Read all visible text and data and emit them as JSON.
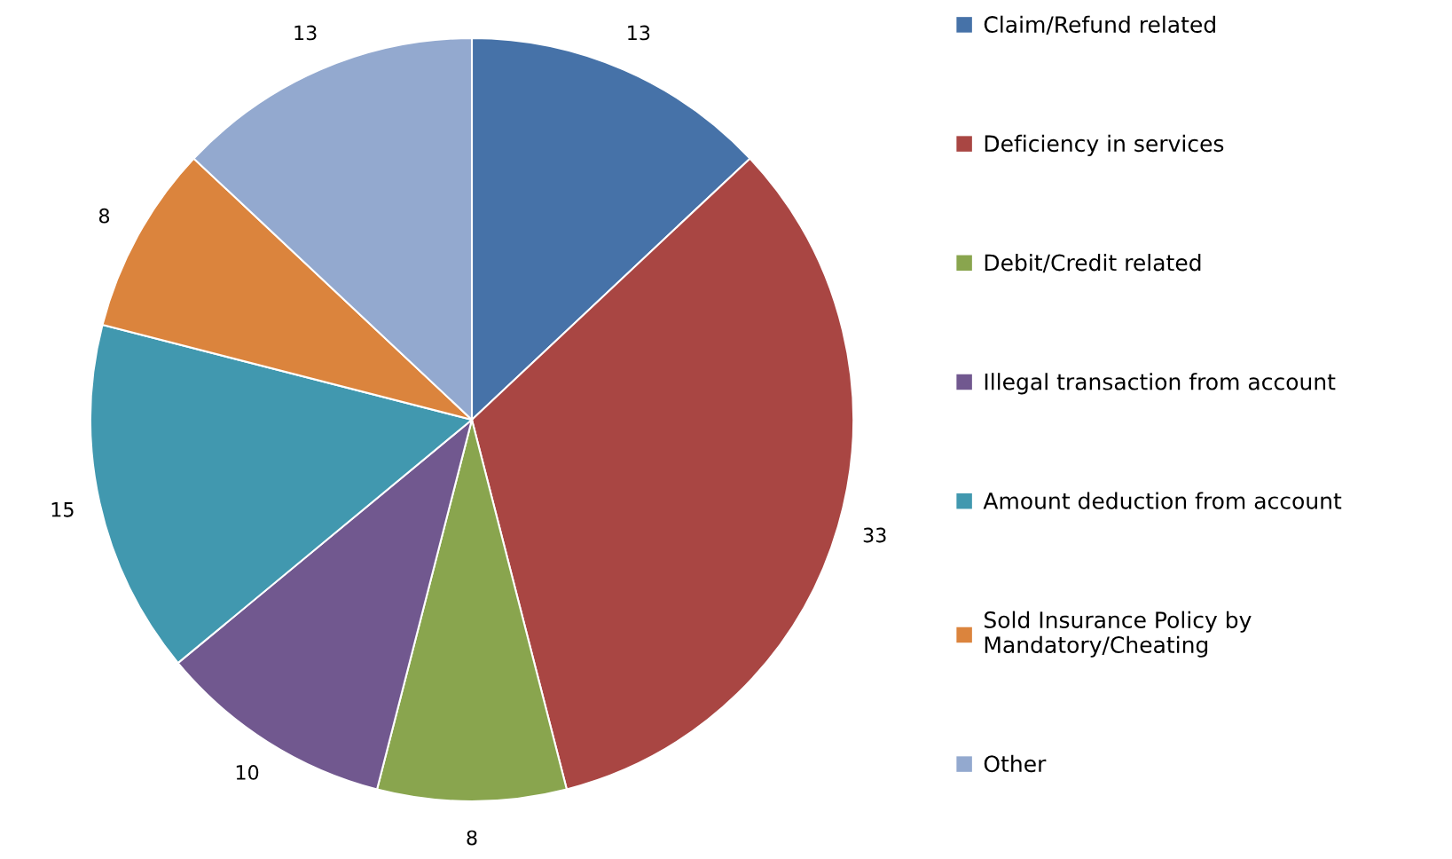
{
  "chart_data": {
    "type": "pie",
    "categories": [
      "Claim/Refund related",
      "Deficiency in services",
      "Debit/Credit related",
      "Illegal transaction from account",
      "Amount deduction from account",
      "Sold Insurance Policy by\nMandatory/Cheating",
      "Other"
    ],
    "values": [
      13,
      33,
      8,
      10,
      15,
      8,
      13
    ],
    "colors": [
      "#4672a8",
      "#a94643",
      "#89a54e",
      "#71588f",
      "#4198af",
      "#db843d",
      "#93a9cf"
    ],
    "data_labels": true,
    "legend": "right"
  }
}
